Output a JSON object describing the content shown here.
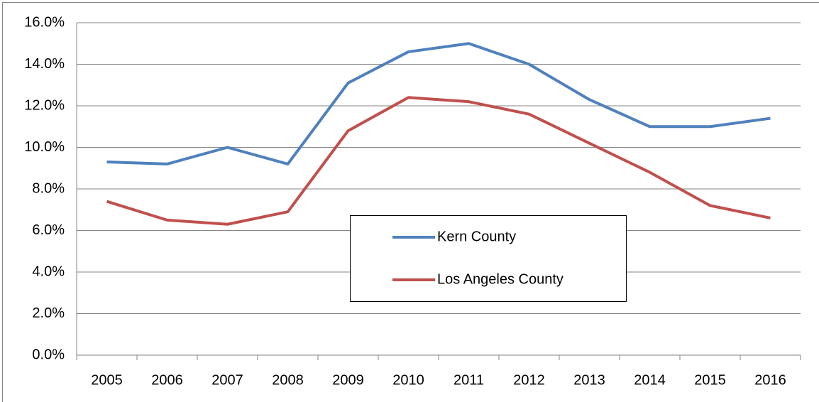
{
  "chart_data": {
    "type": "line",
    "categories": [
      "2005",
      "2006",
      "2007",
      "2008",
      "2009",
      "2010",
      "2011",
      "2012",
      "2013",
      "2014",
      "2015",
      "2016"
    ],
    "series": [
      {
        "name": "Kern County",
        "color": "#4f81bd",
        "values": [
          9.3,
          9.2,
          10.0,
          9.2,
          13.1,
          14.6,
          15.0,
          14.0,
          12.3,
          11.0,
          11.0,
          11.4
        ]
      },
      {
        "name": "Los Angeles County",
        "color": "#c0504d",
        "values": [
          7.4,
          6.5,
          6.3,
          6.9,
          10.8,
          12.4,
          12.2,
          11.6,
          10.2,
          8.8,
          7.2,
          6.6
        ]
      }
    ],
    "ylim": [
      0,
      16
    ],
    "yticks": [
      {
        "value": 0,
        "label": "0.0%"
      },
      {
        "value": 2,
        "label": "2.0%"
      },
      {
        "value": 4,
        "label": "4.0%"
      },
      {
        "value": 6,
        "label": "6.0%"
      },
      {
        "value": 8,
        "label": "8.0%"
      },
      {
        "value": 10,
        "label": "10.0%"
      },
      {
        "value": 12,
        "label": "12.0%"
      },
      {
        "value": 14,
        "label": "14.0%"
      },
      {
        "value": 16,
        "label": "16.0%"
      }
    ],
    "grid": true
  }
}
